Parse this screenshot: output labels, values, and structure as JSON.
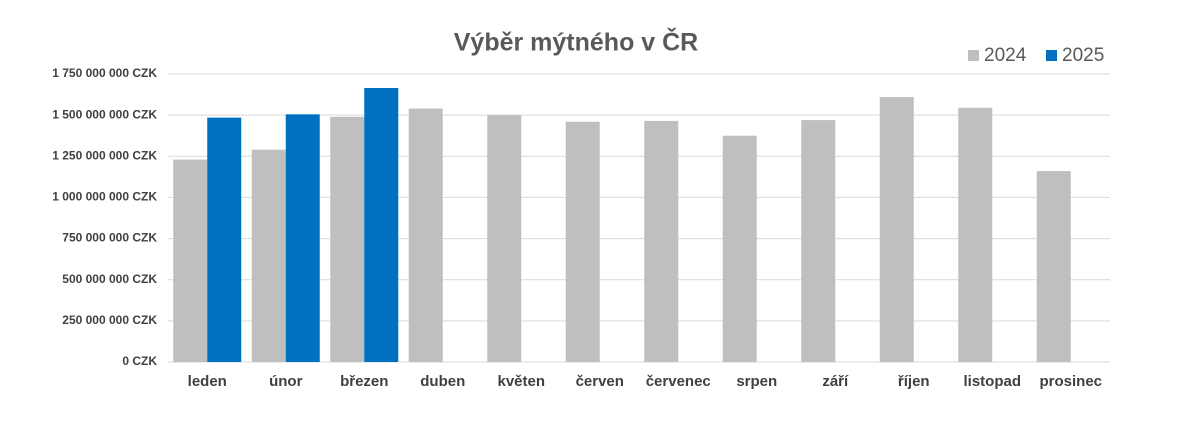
{
  "chart_data": {
    "type": "bar",
    "title": "Výběr mýtného v ČR",
    "categories": [
      "leden",
      "únor",
      "březen",
      "duben",
      "květen",
      "červen",
      "červenec",
      "srpen",
      "září",
      "říjen",
      "listopad",
      "prosinec"
    ],
    "series": [
      {
        "name": "2024",
        "color": "#bfbfbf",
        "values": [
          1230000000,
          1290000000,
          1490000000,
          1540000000,
          1500000000,
          1460000000,
          1465000000,
          1375000000,
          1470000000,
          1610000000,
          1545000000,
          1160000000
        ]
      },
      {
        "name": "2025",
        "color": "#0070c0",
        "values": [
          1485000000,
          1505000000,
          1665000000,
          null,
          null,
          null,
          null,
          null,
          null,
          null,
          null,
          null
        ]
      }
    ],
    "ylim": [
      0,
      1750000000
    ],
    "yticks": [
      {
        "value": 0,
        "label": "0 CZK"
      },
      {
        "value": 250000000,
        "label": "250 000 000 CZK"
      },
      {
        "value": 500000000,
        "label": "500 000 000 CZK"
      },
      {
        "value": 750000000,
        "label": "750 000 000 CZK"
      },
      {
        "value": 1000000000,
        "label": "1 000 000 000 CZK"
      },
      {
        "value": 1250000000,
        "label": "1 250 000 000 CZK"
      },
      {
        "value": 1500000000,
        "label": "1 500 000 000 CZK"
      },
      {
        "value": 1750000000,
        "label": "1 750 000 000 CZK"
      }
    ],
    "grid": true,
    "legend": "top-right"
  }
}
